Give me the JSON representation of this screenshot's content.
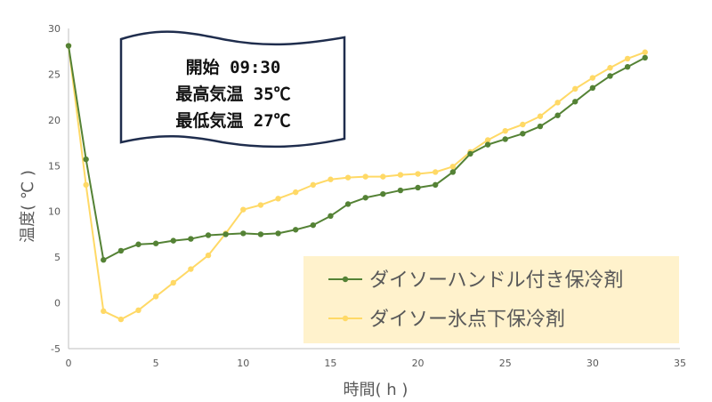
{
  "chart_data": {
    "type": "line",
    "xlabel": "時間( h )",
    "ylabel": "温度( ℃ )",
    "xlim": [
      0,
      35
    ],
    "ylim": [
      -5,
      30
    ],
    "xticks": [
      0,
      5,
      10,
      15,
      20,
      25,
      30,
      35
    ],
    "yticks": [
      -5,
      0,
      5,
      10,
      15,
      20,
      25,
      30
    ],
    "grid": "none",
    "legend_position": "bottom-right",
    "annotation": {
      "lines": [
        "開始 09:30",
        "最高気温 35℃",
        "最低気温 27℃"
      ]
    },
    "x": [
      0,
      1,
      2,
      3,
      4,
      5,
      6,
      7,
      8,
      9,
      10,
      11,
      12,
      13,
      14,
      15,
      16,
      17,
      18,
      19,
      20,
      21,
      22,
      23,
      24,
      25,
      26,
      27,
      28,
      29,
      30,
      31,
      32,
      33
    ],
    "series": [
      {
        "name": "ダイソーハンドル付き保冷剤",
        "color": "#548235",
        "values": [
          28.1,
          15.7,
          4.7,
          5.7,
          6.4,
          6.5,
          6.8,
          7.0,
          7.4,
          7.5,
          7.6,
          7.5,
          7.6,
          8.0,
          8.5,
          9.5,
          10.8,
          11.5,
          11.9,
          12.3,
          12.6,
          12.9,
          14.3,
          16.3,
          17.3,
          17.9,
          18.5,
          19.3,
          20.5,
          22.0,
          23.5,
          24.8,
          25.8,
          26.8
        ]
      },
      {
        "name": "ダイソー氷点下保冷剤",
        "color": "#FFD966",
        "values": [
          28.1,
          12.9,
          -0.9,
          -1.8,
          -0.8,
          0.7,
          2.2,
          3.7,
          5.2,
          7.6,
          10.2,
          10.7,
          11.4,
          12.1,
          12.9,
          13.5,
          13.7,
          13.8,
          13.8,
          14.0,
          14.1,
          14.3,
          14.9,
          16.5,
          17.8,
          18.8,
          19.5,
          20.4,
          21.9,
          23.4,
          24.6,
          25.7,
          26.7,
          27.4
        ]
      }
    ]
  }
}
